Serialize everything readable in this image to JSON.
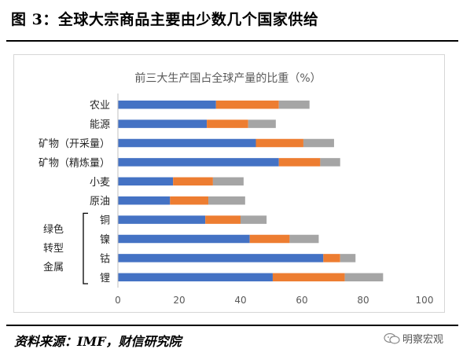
{
  "figure": {
    "title": "图 3：全球大宗商品主要由少数几个国家供给",
    "source": "资料来源：IMF，财信研究院",
    "watermark": "明察宏观"
  },
  "colors": {
    "series1": "#4472C4",
    "series2": "#ED7D31",
    "series3": "#A5A5A5",
    "axis": "#bfbfbf",
    "text": "#595959"
  },
  "chart_data": {
    "type": "bar",
    "orientation": "horizontal",
    "stacked": true,
    "title": "前三大生产国占全球产量的比重（%）",
    "categories": [
      "农业",
      "能源",
      "矿物（开采量）",
      "矿物（精炼量）",
      "小麦",
      "原油",
      "铜",
      "镍",
      "钴",
      "锂"
    ],
    "series": [
      {
        "values": [
          32,
          29,
          45,
          52.5,
          18,
          17,
          28.5,
          43,
          67,
          50.5
        ]
      },
      {
        "values": [
          20.5,
          13.5,
          15.5,
          13.5,
          13,
          12.5,
          11.5,
          13,
          5.5,
          23.5
        ]
      },
      {
        "values": [
          10,
          9,
          10,
          6.5,
          10,
          12,
          8.5,
          9.5,
          5,
          12.5
        ]
      }
    ],
    "xlim": [
      0,
      100
    ],
    "xticks": [
      "0",
      "20",
      "40",
      "60",
      "80",
      "100"
    ],
    "group_label": [
      "绿色",
      "转型",
      "金属"
    ],
    "grid": false,
    "legend": "none"
  }
}
